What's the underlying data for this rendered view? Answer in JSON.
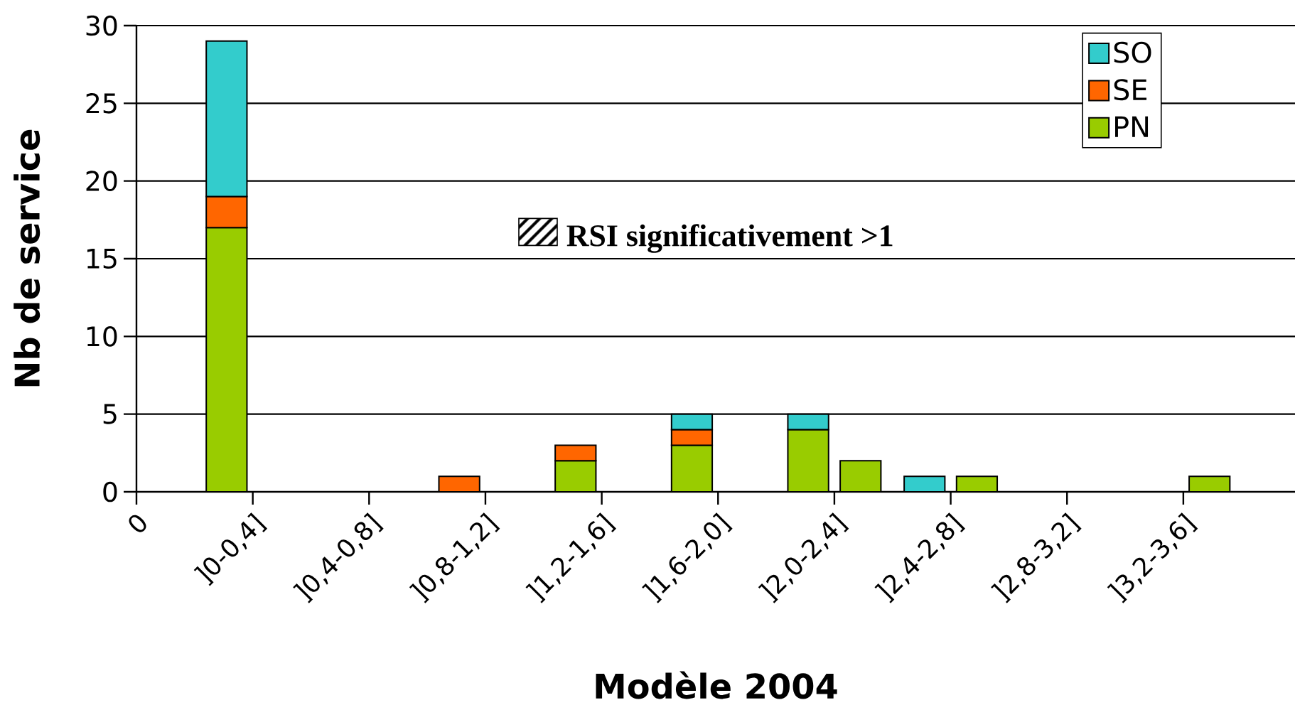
{
  "chart_data": [
    {
      "type": "bar",
      "xlabel": "Modèle 2004",
      "ylabel": "Nb de service",
      "categories": [
        "0",
        "]0-0,4]",
        "]0,4-0,8]",
        "]0,8-1,2]",
        "]1,2-1,6]",
        "]1,6-2,0]",
        "]2,0-2,4]",
        "]2,4-2,8]",
        "]2,8-3,2]",
        "]3,2-3,6]"
      ],
      "series": [
        {
          "name": "PN",
          "color": "#99cc00",
          "values": [
            null,
            17,
            null,
            null,
            2,
            3,
            4,
            null,
            null,
            null
          ]
        },
        {
          "name": "SE",
          "color": "#ff6600",
          "values": [
            null,
            2,
            null,
            1,
            1,
            1,
            null,
            null,
            null,
            null
          ]
        },
        {
          "name": "SO",
          "color": "#33cccc",
          "values": [
            null,
            10,
            null,
            null,
            null,
            1,
            1,
            1,
            null,
            null
          ]
        }
      ],
      "stacked": true,
      "ylim": [
        0,
        30
      ],
      "yticks": [
        0,
        5,
        10,
        15,
        20,
        25,
        30
      ],
      "grid": "y",
      "legend": "top right"
    },
    {
      "type": "bar",
      "categories": [
        null,
        null,
        null,
        null,
        null,
        null,
        null,
        null,
        null,
        null
      ],
      "series": [
        {
          "name": "RSI significativement >1",
          "color": "#99cc00",
          "values": [
            null,
            null,
            null,
            null,
            null,
            null,
            2,
            1,
            null,
            1
          ]
        }
      ],
      "ylim": [
        0,
        30
      ],
      "legend": "top"
    }
  ]
}
